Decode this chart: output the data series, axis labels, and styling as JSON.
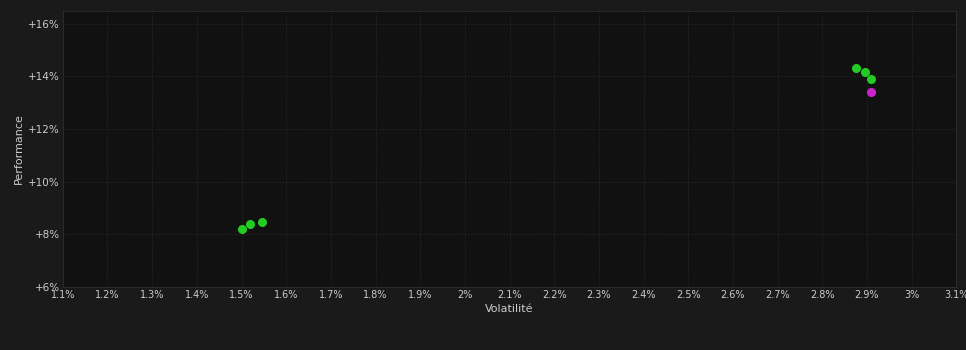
{
  "background_color": "#1a1a1a",
  "plot_bg_color": "#111111",
  "grid_color": "#2a2a2a",
  "text_color": "#cccccc",
  "xlabel": "Volatilité",
  "ylabel": "Performance",
  "xlim": [
    0.011,
    0.031
  ],
  "ylim": [
    0.06,
    0.165
  ],
  "xticks": [
    0.011,
    0.012,
    0.013,
    0.014,
    0.015,
    0.016,
    0.017,
    0.018,
    0.019,
    0.02,
    0.021,
    0.022,
    0.023,
    0.024,
    0.025,
    0.026,
    0.027,
    0.028,
    0.029,
    0.03,
    0.031
  ],
  "yticks": [
    0.06,
    0.08,
    0.1,
    0.12,
    0.14,
    0.16
  ],
  "ytick_labels": [
    "+6%",
    "+8%",
    "+10%",
    "+12%",
    "+14%",
    "+16%"
  ],
  "xtick_labels": [
    "1.1%",
    "1.2%",
    "1.3%",
    "1.4%",
    "1.5%",
    "1.6%",
    "1.7%",
    "1.8%",
    "1.9%",
    "2%",
    "2.1%",
    "2.2%",
    "2.3%",
    "2.4%",
    "2.5%",
    "2.6%",
    "2.7%",
    "2.8%",
    "2.9%",
    "3%",
    "3.1%"
  ],
  "green_points": [
    [
      0.015,
      0.082
    ],
    [
      0.0152,
      0.0838
    ],
    [
      0.01545,
      0.0848
    ],
    [
      0.02875,
      0.143
    ],
    [
      0.02895,
      0.1415
    ],
    [
      0.0291,
      0.139
    ]
  ],
  "magenta_points": [
    [
      0.0291,
      0.134
    ]
  ],
  "green_color": "#22cc22",
  "magenta_color": "#cc22cc",
  "marker_size": 5.5
}
